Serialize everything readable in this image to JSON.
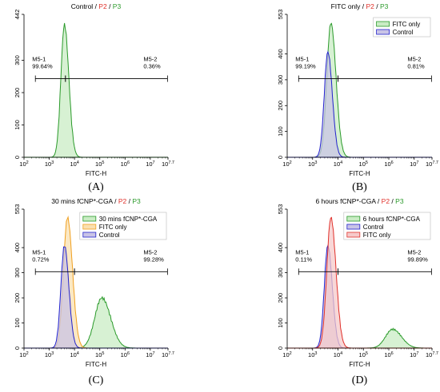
{
  "chart_data": [
    {
      "type": "area",
      "panel_label": "(A)",
      "title": {
        "prefix": "Control",
        "sep1": " / ",
        "p2": "P2",
        "sep2": " / ",
        "p3": "P3"
      },
      "xlabel": "FITC-H",
      "x_scale": "log",
      "xlim": [
        2,
        7.7
      ],
      "x_ticks": [
        2,
        3,
        4,
        5,
        6,
        7,
        7.7
      ],
      "ylim": [
        0,
        442
      ],
      "y_ticks": [
        0,
        100,
        200,
        300,
        442
      ],
      "grid": false,
      "legend": null,
      "gates": [
        {
          "name": "M5-1",
          "value": "99.64%",
          "range": [
            2.45,
            3.64
          ]
        },
        {
          "name": "M5-2",
          "value": "0.36%",
          "range": [
            3.64,
            7.68
          ]
        }
      ],
      "series": [
        {
          "color": "#2a9a2a",
          "fill": "#c9ecc4",
          "peak_log": 3.6,
          "peak": 410,
          "width": 0.14
        }
      ]
    },
    {
      "type": "area",
      "panel_label": "(B)",
      "title": {
        "prefix": "FITC only",
        "sep1": " / ",
        "p2": "P2",
        "sep2": " / ",
        "p3": "P3"
      },
      "xlabel": "FITC-H",
      "x_scale": "log",
      "xlim": [
        2,
        7.7
      ],
      "x_ticks": [
        2,
        3,
        4,
        5,
        6,
        7,
        7.7
      ],
      "ylim": [
        0,
        553
      ],
      "y_ticks": [
        0,
        100,
        200,
        300,
        400,
        553
      ],
      "grid": false,
      "legend": "top-right",
      "gates": [
        {
          "name": "M5-1",
          "value": "99.19%",
          "range": [
            2.45,
            4.0
          ]
        },
        {
          "name": "M5-2",
          "value": "0.81%",
          "range": [
            4.0,
            7.68
          ]
        }
      ],
      "series": [
        {
          "name": "FITC only",
          "color": "#2a9a2a",
          "fill": "#c9ecc4",
          "peak_log": 3.72,
          "peak": 520,
          "width": 0.16
        },
        {
          "name": "Control",
          "color": "#2222cc",
          "fill": "#c9c4e6",
          "peak_log": 3.6,
          "peak": 408,
          "width": 0.14
        }
      ]
    },
    {
      "type": "area",
      "panel_label": "(C)",
      "title": {
        "prefix": "30 mins fCNP*-CGA",
        "sep1": " / ",
        "p2": "P2",
        "sep2": " / ",
        "p3": "P3"
      },
      "xlabel": "FITC-H",
      "x_scale": "log",
      "xlim": [
        2,
        7.7
      ],
      "x_ticks": [
        2,
        3,
        4,
        5,
        6,
        7,
        7.7
      ],
      "ylim": [
        0,
        553
      ],
      "y_ticks": [
        0,
        100,
        200,
        300,
        400,
        553
      ],
      "grid": false,
      "legend": "top-right",
      "gates": [
        {
          "name": "M5-1",
          "value": "0.72%",
          "range": [
            2.45,
            4.0
          ]
        },
        {
          "name": "M5-2",
          "value": "99.28%",
          "range": [
            4.0,
            7.68
          ]
        }
      ],
      "series": [
        {
          "name": "30 mins fCNP*-CGA",
          "color": "#2a9a2a",
          "fill": "#c9ecc4",
          "peak_log": 5.08,
          "peak": 200,
          "width": 0.28
        },
        {
          "name": "FITC only",
          "color": "#f0a020",
          "fill": "#fae0b0",
          "peak_log": 3.72,
          "peak": 520,
          "width": 0.16
        },
        {
          "name": "Control",
          "color": "#2222cc",
          "fill": "#c9c4e6",
          "peak_log": 3.6,
          "peak": 408,
          "width": 0.14
        }
      ]
    },
    {
      "type": "area",
      "panel_label": "(D)",
      "title": {
        "prefix": "6 hours fCNP*-CGA",
        "sep1": " / ",
        "p2": "P2",
        "sep2": " / ",
        "p3": "P3"
      },
      "xlabel": "FITC-H",
      "x_scale": "log",
      "xlim": [
        2,
        7.7
      ],
      "x_ticks": [
        2,
        3,
        4,
        5,
        6,
        7,
        7.7
      ],
      "ylim": [
        0,
        553
      ],
      "y_ticks": [
        0,
        100,
        200,
        300,
        400,
        553
      ],
      "grid": false,
      "legend": "top-right",
      "gates": [
        {
          "name": "M5-1",
          "value": "0.11%",
          "range": [
            2.45,
            4.0
          ]
        },
        {
          "name": "M5-2",
          "value": "99.89%",
          "range": [
            4.0,
            7.68
          ]
        }
      ],
      "series": [
        {
          "name": "6 hours fCNP*-CGA",
          "color": "#2a9a2a",
          "fill": "#c9ecc4",
          "peak_log": 6.15,
          "peak": 75,
          "width": 0.28
        },
        {
          "name": "Control",
          "color": "#2222cc",
          "fill": "#c9c4e6",
          "peak_log": 3.6,
          "peak": 408,
          "width": 0.14
        },
        {
          "name": "FITC only",
          "color": "#e0302a",
          "fill": "#f6caca",
          "peak_log": 3.72,
          "peak": 520,
          "width": 0.16
        }
      ]
    }
  ]
}
